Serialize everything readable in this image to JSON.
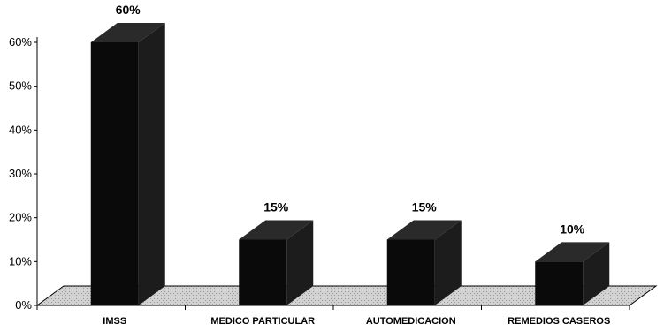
{
  "chart_data": {
    "type": "bar",
    "style": "3d-column",
    "categories": [
      "IMSS",
      "MEDICO PARTICULAR",
      "AUTOMEDICACION",
      "REMEDIOS CASEROS"
    ],
    "values": [
      60,
      15,
      15,
      10
    ],
    "data_labels": [
      "60%",
      "15%",
      "15%",
      "10%"
    ],
    "ylim": [
      0,
      60
    ],
    "yticks": [
      0,
      10,
      20,
      30,
      40,
      50,
      60
    ],
    "ytick_labels": [
      "0%",
      "10%",
      "20%",
      "30%",
      "40%",
      "50%",
      "60%"
    ],
    "title": "",
    "xlabel": "",
    "ylabel": "",
    "grid": false,
    "legend": "none",
    "colors": {
      "bar_front": "#0a0a0a",
      "bar_side": "#1c1c1c",
      "bar_top": "#2a2a2a",
      "floor": "#c8c8c8",
      "axis": "#000000"
    }
  }
}
